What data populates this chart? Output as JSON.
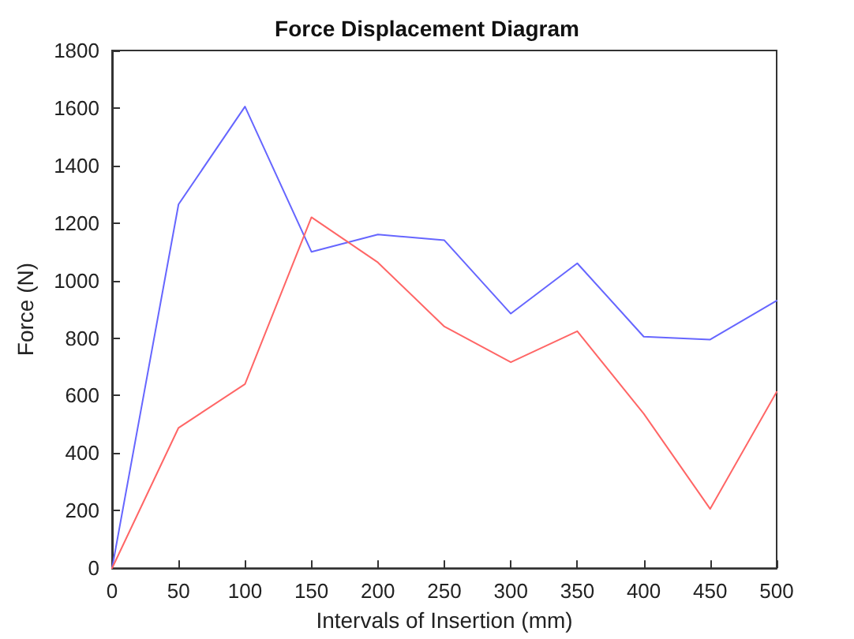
{
  "chart_data": {
    "type": "line",
    "title": "Force Displacement Diagram",
    "xlabel": "Intervals of Insertion (mm)",
    "ylabel": "Force (N)",
    "x": [
      0,
      50,
      100,
      150,
      200,
      250,
      300,
      350,
      400,
      450,
      500
    ],
    "series": [
      {
        "color": "#6666ff",
        "values": [
          0,
          1265,
          1605,
          1100,
          1160,
          1140,
          885,
          1060,
          805,
          795,
          930
        ]
      },
      {
        "color": "#ff6666",
        "values": [
          0,
          488,
          640,
          1220,
          1063,
          840,
          716,
          824,
          537,
          206,
          613
        ]
      }
    ],
    "xlim": [
      0,
      500
    ],
    "xticks": [
      0,
      50,
      100,
      150,
      200,
      250,
      300,
      350,
      400,
      450,
      500
    ],
    "ylim": [
      0,
      1800
    ],
    "yticks": [
      0,
      200,
      400,
      600,
      800,
      1000,
      1200,
      1400,
      1600,
      1800
    ],
    "grid": false,
    "marker": "none",
    "line_style": "solid"
  }
}
